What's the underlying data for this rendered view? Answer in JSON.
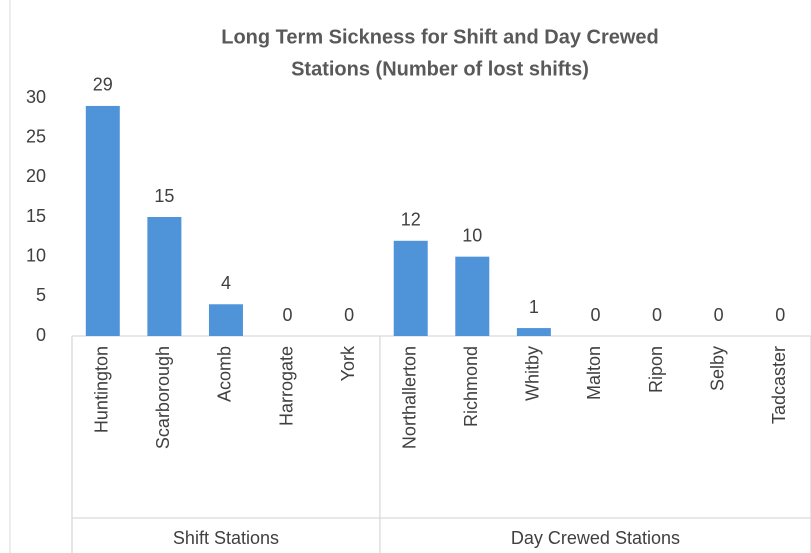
{
  "chart_data": {
    "type": "bar",
    "title": [
      "Long Term Sickness for Shift and Day Crewed",
      "Stations (Number of lost shifts)"
    ],
    "groups": [
      {
        "name": "Shift Stations",
        "categories": [
          "Huntington",
          "Scarborough",
          "Acomb",
          "Harrogate",
          "York"
        ],
        "values": [
          29,
          15,
          4,
          0,
          0
        ]
      },
      {
        "name": "Day Crewed Stations",
        "categories": [
          "Northallerton",
          "Richmond",
          "Whitby",
          "Malton",
          "Ripon",
          "Selby",
          "Tadcaster"
        ],
        "values": [
          12,
          10,
          1,
          0,
          0,
          0,
          0
        ]
      }
    ],
    "color": "#4f94d9",
    "ylim": [
      0,
      30
    ],
    "yticks": [
      0,
      5,
      10,
      15,
      20,
      25,
      30
    ],
    "grid": false
  }
}
